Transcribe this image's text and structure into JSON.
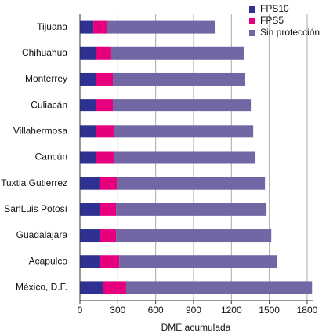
{
  "chart_data": {
    "type": "stacked-barh",
    "categories": [
      "Tijuana",
      "Chihuahua",
      "Monterrey",
      "Culiacán",
      "Villahermosa",
      "Cancún",
      "Tuxtla Gutierrez",
      "SanLuis Potosí",
      "Guadalajara",
      "Acapulco",
      "México, D.F."
    ],
    "series": [
      {
        "name": "FPS10",
        "color": "#2e3192",
        "values": [
          106,
          130,
          130,
          130,
          130,
          130,
          155,
          155,
          155,
          155,
          180
        ]
      },
      {
        "name": "FPS5",
        "color": "#e6007e",
        "values": [
          105,
          118,
          131,
          131,
          137,
          143,
          137,
          131,
          131,
          156,
          186
        ]
      },
      {
        "name": "Sin protección",
        "color": "#7266a4",
        "values": [
          857,
          1050,
          1049,
          1093,
          1106,
          1118,
          1174,
          1192,
          1230,
          1248,
          1473
        ]
      }
    ],
    "xlabel": "DME acumulada",
    "xlim": [
      0,
      1850
    ],
    "xticks": [
      0,
      300,
      600,
      900,
      1200,
      1500,
      1800
    ],
    "grid": true,
    "legend": "top-right"
  }
}
